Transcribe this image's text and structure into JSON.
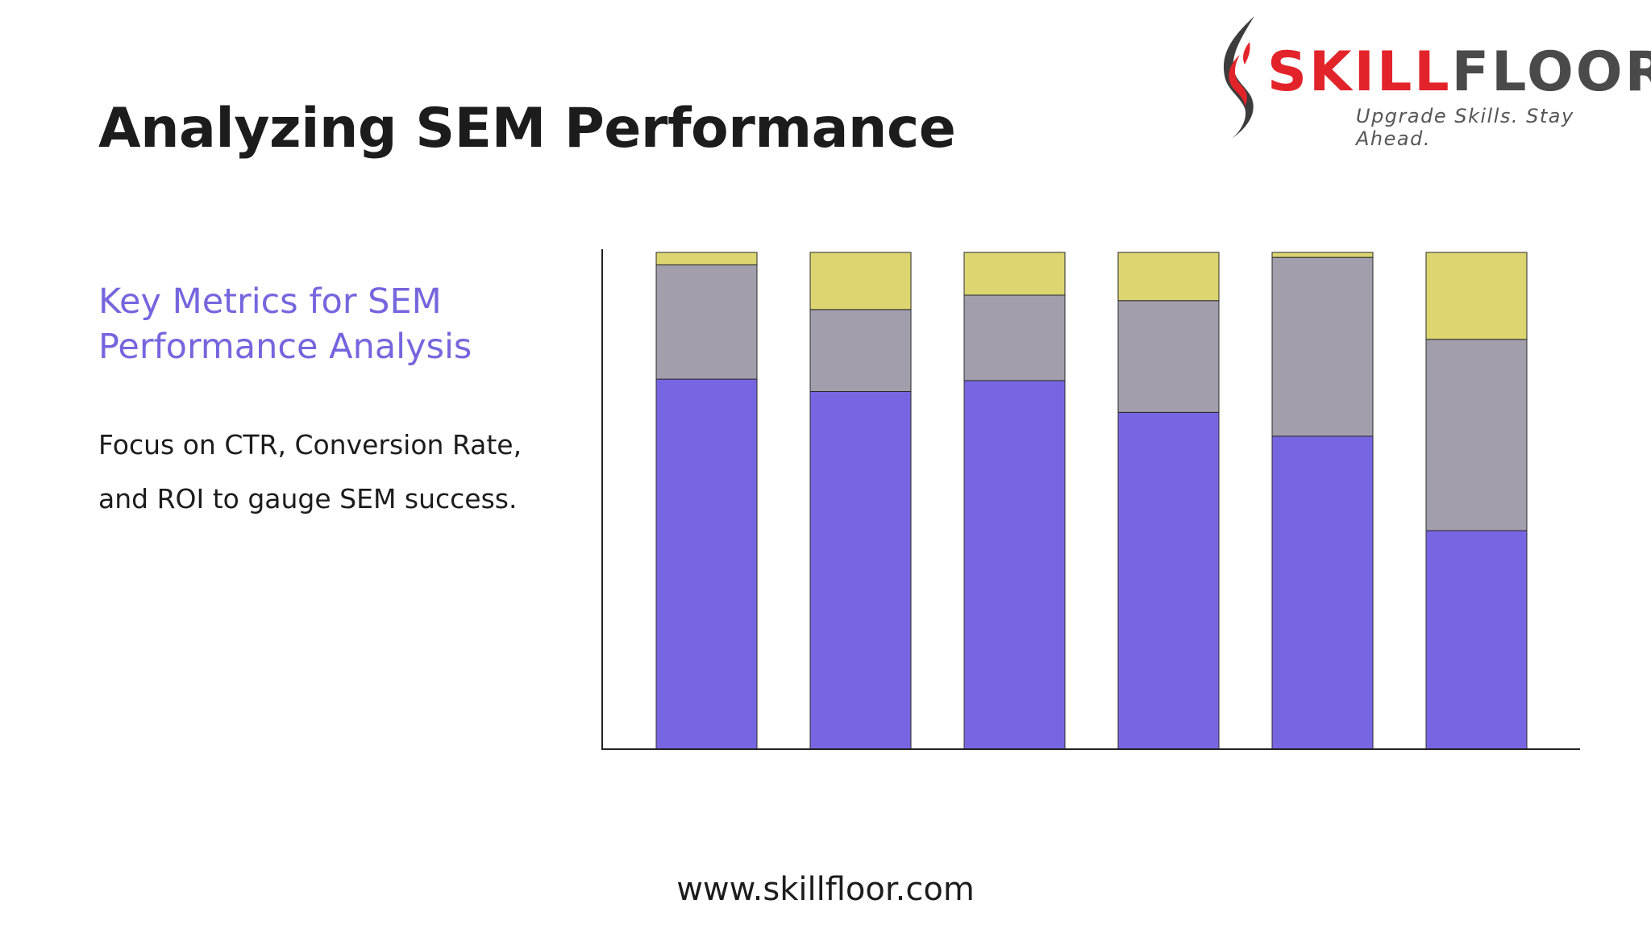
{
  "slide": {
    "title": "Analyzing SEM Performance",
    "subtitle": "Key Metrics for SEM Performance Analysis",
    "body": "Focus on CTR, Conversion Rate, and ROI to gauge SEM success.",
    "footer": "www.skillfloor.com"
  },
  "logo": {
    "word_red": "SKILL",
    "word_dark": "FLOOR",
    "tagline": "Upgrade Skills. Stay Ahead."
  },
  "colors": {
    "accent": "#7566de",
    "series_1": "#7766e2",
    "series_2": "#a29eac",
    "series_3": "#dcd570"
  },
  "chart_data": {
    "type": "bar",
    "stacked": true,
    "categories": [
      "",
      "",
      "",
      "",
      "",
      ""
    ],
    "series": [
      {
        "values": [
          74.5,
          72.0,
          74.2,
          67.8,
          63.0,
          44.0
        ]
      },
      {
        "values": [
          23.0,
          16.5,
          17.2,
          22.5,
          36.0,
          38.5
        ]
      },
      {
        "values": [
          2.5,
          11.5,
          8.6,
          9.7,
          1.0,
          17.5
        ]
      }
    ],
    "ylim": [
      0,
      100
    ],
    "grid": false,
    "legend": "none",
    "xlabel": "",
    "ylabel": ""
  }
}
